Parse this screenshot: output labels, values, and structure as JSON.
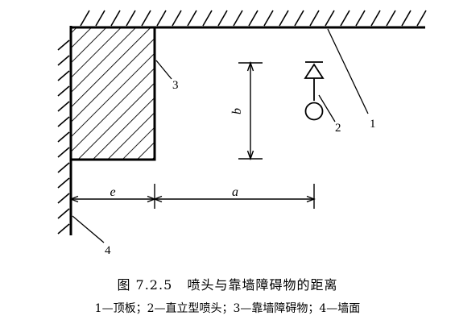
{
  "diagram": {
    "labels": {
      "ceiling": "1",
      "sprinkler": "2",
      "obstruction": "3",
      "wall": "4",
      "dim_e": "e",
      "dim_a": "a",
      "dim_b": "b"
    }
  },
  "caption": {
    "figure_no": "图 7.2.5",
    "title": "喷头与靠墙障碍物的距离",
    "legend": "1—顶板；2—直立型喷头；3—靠墙障碍物；4—墙面"
  },
  "colors": {
    "line": "#000000",
    "background": "#ffffff"
  }
}
